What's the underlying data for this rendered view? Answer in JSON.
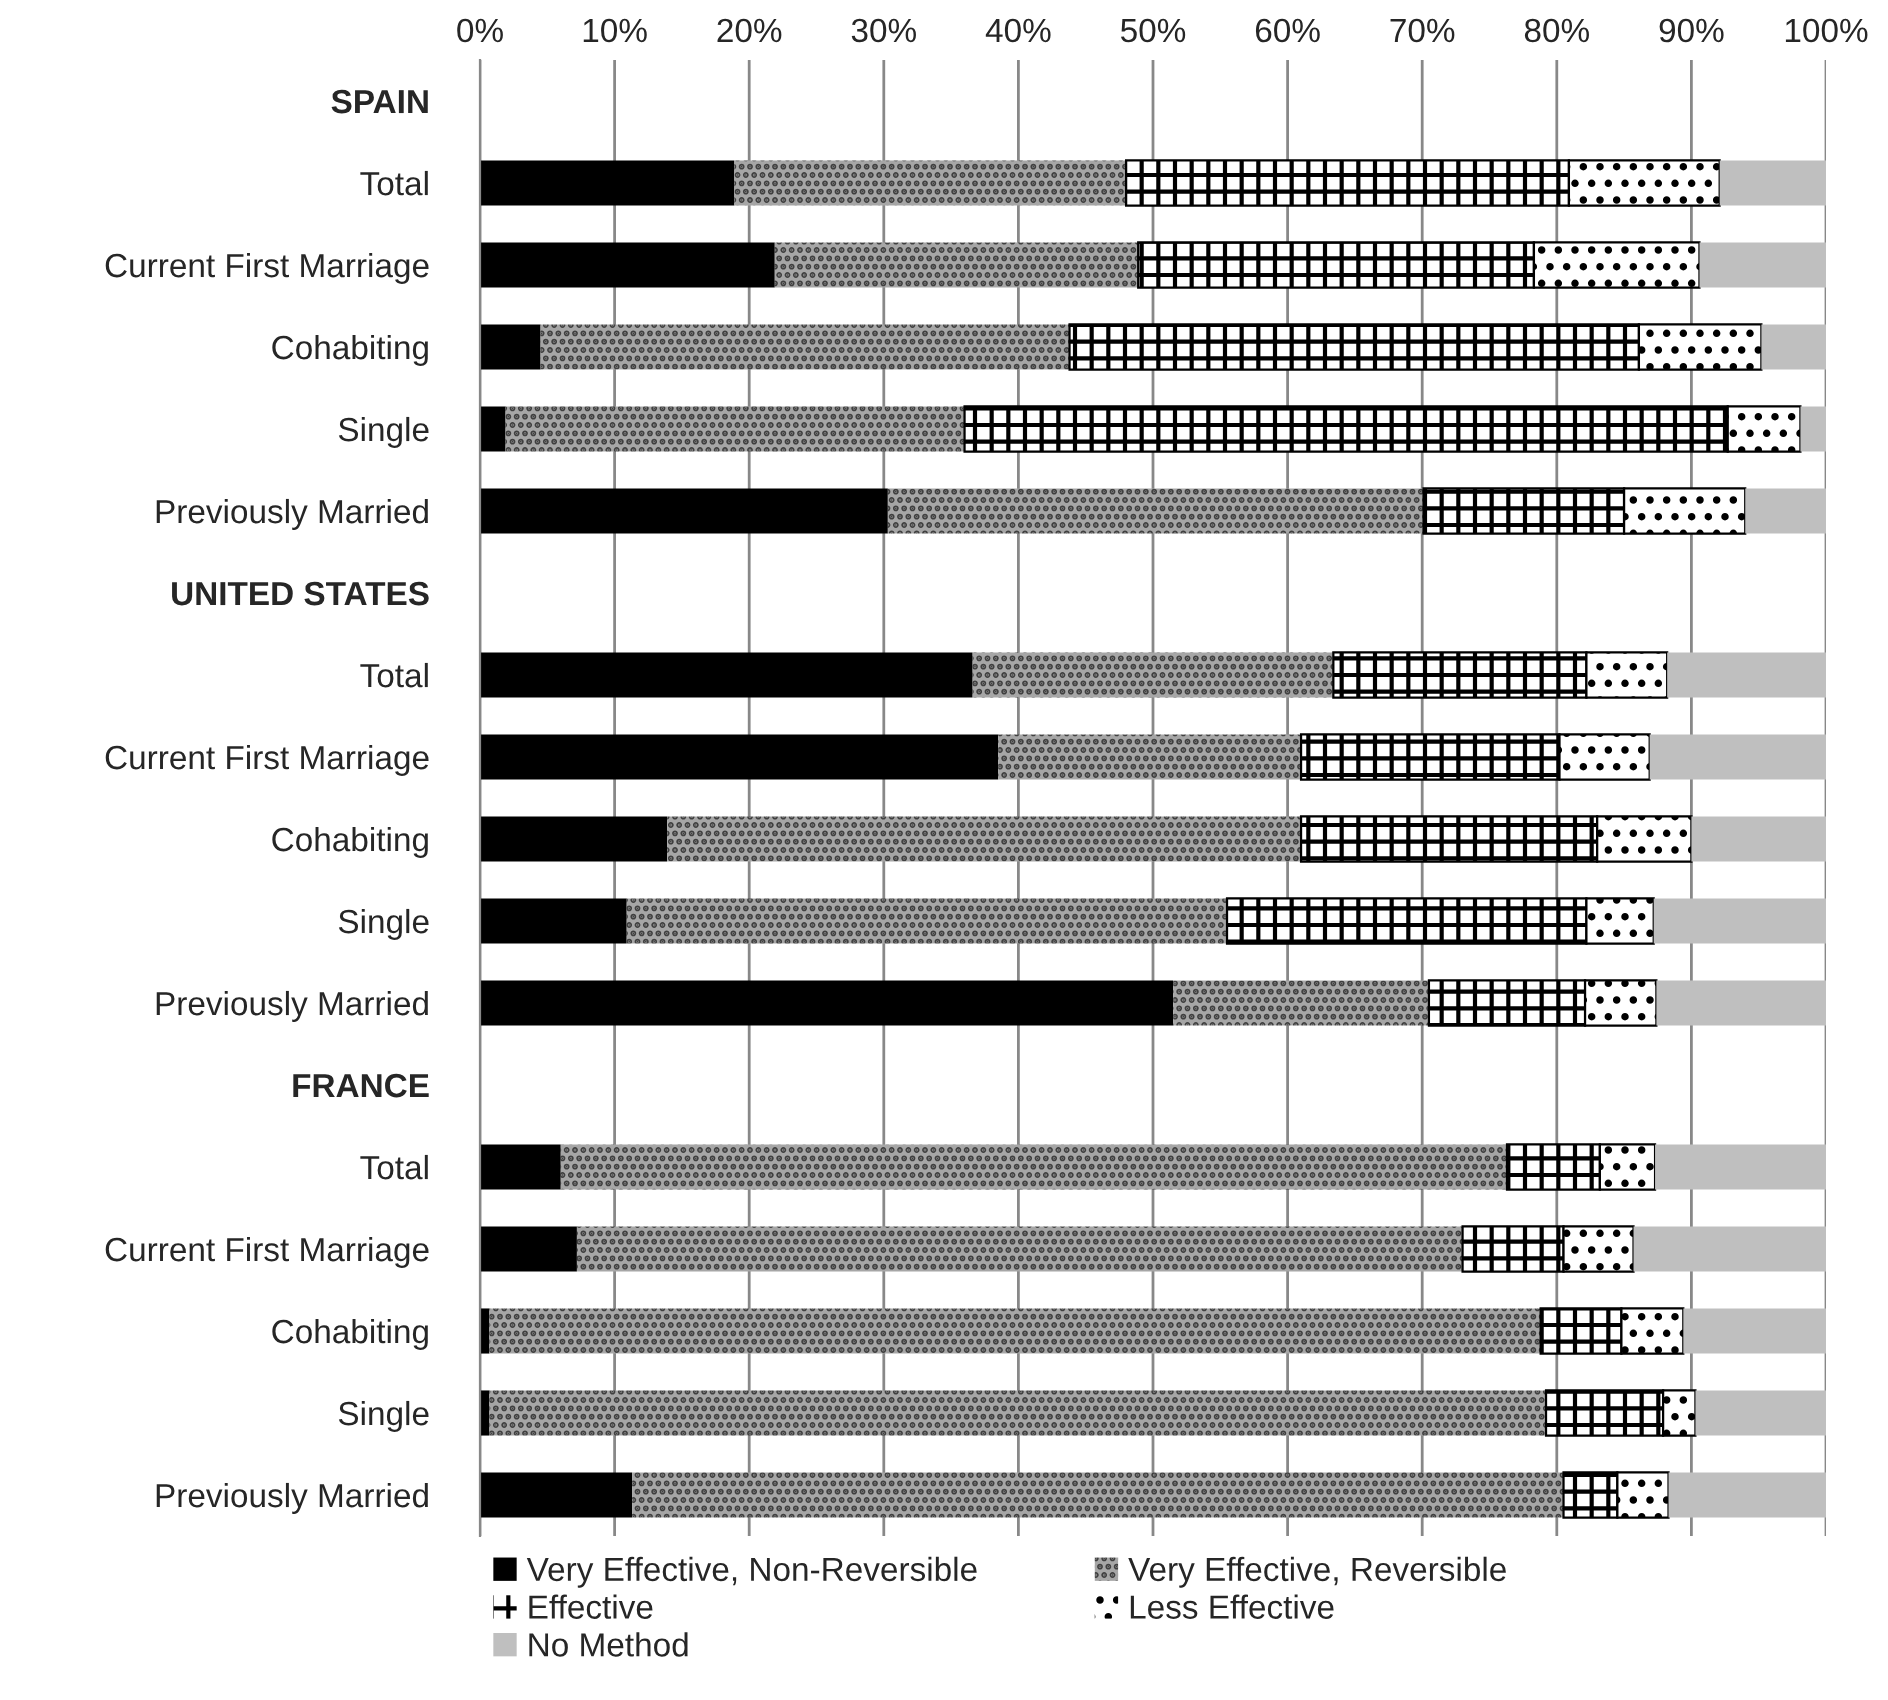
{
  "chart_data": {
    "type": "bar",
    "orientation": "horizontal",
    "stacked": true,
    "categories": [
      "SPAIN",
      "Total",
      "Current First Marriage",
      "Cohabiting",
      "Single",
      "Previously Married",
      "UNITED STATES",
      "Total",
      "Current First Marriage",
      "Cohabiting",
      "Single",
      "Previously Married",
      "FRANCE",
      "Total",
      "Current First Marriage",
      "Cohabiting",
      "Single",
      "Previously Married"
    ],
    "series": [
      {
        "name": "Very Effective, Non-Reversible",
        "color": "#000000",
        "values": [
          null,
          18.9,
          21.9,
          4.5,
          1.9,
          30.3,
          null,
          36.6,
          38.5,
          13.9,
          10.9,
          51.5,
          null,
          6.0,
          7.2,
          0.7,
          0.7,
          11.3
        ]
      },
      {
        "name": "Very Effective, Reversible",
        "color": "#a6a6a6",
        "values": [
          null,
          29.1,
          27.0,
          39.3,
          34.1,
          39.8,
          null,
          26.8,
          22.5,
          47.1,
          44.6,
          19.0,
          null,
          70.3,
          65.8,
          78.1,
          78.5,
          69.2
        ]
      },
      {
        "name": "Effective",
        "color": "#000000",
        "values": [
          null,
          32.9,
          29.4,
          42.3,
          56.7,
          14.9,
          null,
          18.8,
          19.2,
          22.0,
          26.7,
          11.6,
          null,
          6.9,
          7.5,
          6.0,
          8.7,
          4.0
        ]
      },
      {
        "name": "Less Effective",
        "color": "#000000",
        "values": [
          null,
          11.2,
          12.3,
          9.1,
          5.4,
          9.0,
          null,
          6.0,
          6.7,
          7.0,
          5.0,
          5.3,
          null,
          4.1,
          5.2,
          4.6,
          2.4,
          3.8
        ]
      },
      {
        "name": "No Method",
        "color": "#bfbfbf",
        "values": [
          null,
          7.9,
          9.4,
          4.8,
          1.9,
          6.0,
          null,
          11.8,
          13.1,
          10.0,
          12.8,
          12.6,
          null,
          12.7,
          14.3,
          10.6,
          9.7,
          11.7
        ]
      }
    ],
    "xlim": [
      0,
      100
    ],
    "xticks": [
      {
        "value": 0,
        "label": "0%"
      },
      {
        "value": 10,
        "label": "10%"
      },
      {
        "value": 20,
        "label": "20%"
      },
      {
        "value": 30,
        "label": "30%"
      },
      {
        "value": 40,
        "label": "40%"
      },
      {
        "value": 50,
        "label": "50%"
      },
      {
        "value": 60,
        "label": "60%"
      },
      {
        "value": 70,
        "label": "70%"
      },
      {
        "value": 80,
        "label": "80%"
      },
      {
        "value": 90,
        "label": "90%"
      },
      {
        "value": 100,
        "label": "100%"
      }
    ],
    "grid": "x",
    "legend": "bottom"
  }
}
